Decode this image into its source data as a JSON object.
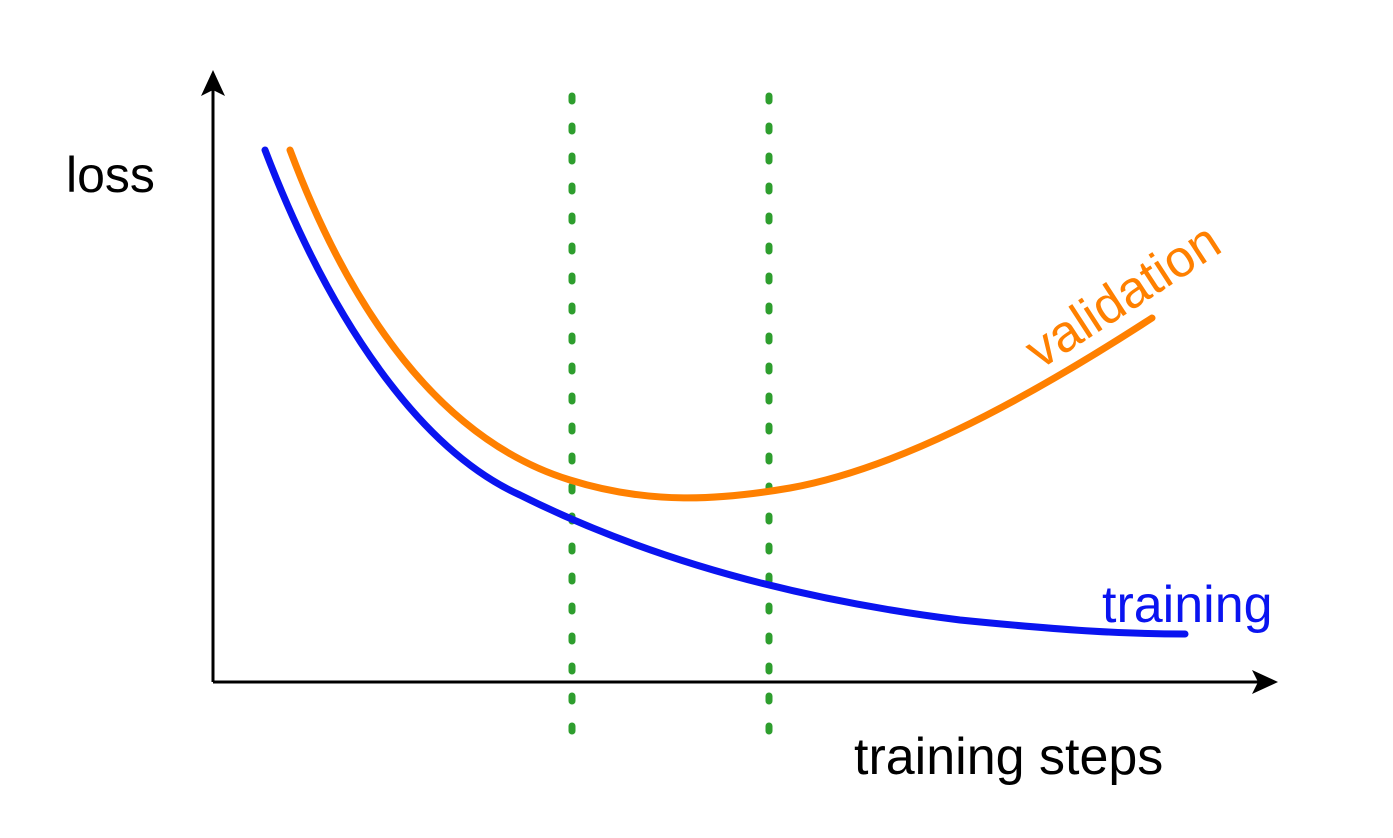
{
  "labels": {
    "y_axis": "loss",
    "x_axis": "training steps",
    "training_curve": "training",
    "validation_curve": "validation"
  },
  "colors": {
    "training": "#0a14f0",
    "validation": "#ff8000",
    "markers": "#2e9e2e",
    "axes": "#000000"
  }
}
